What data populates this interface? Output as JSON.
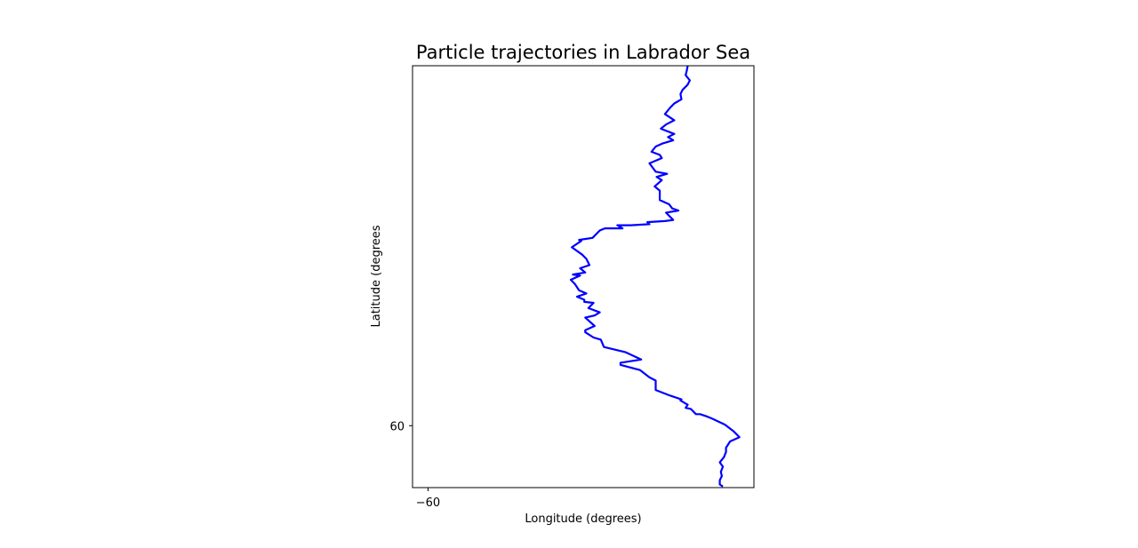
{
  "chart_data": {
    "type": "line",
    "title": "Particle trajectories in Labrador Sea",
    "xlabel": "Longitude (degrees)",
    "ylabel": "Latitude (degrees",
    "xlim": [
      -60.15,
      -56.85
    ],
    "ylim": [
      59.41,
      63.43
    ],
    "xticks": [
      {
        "value": -60,
        "label": "−60"
      }
    ],
    "yticks": [
      {
        "value": 60,
        "label": "60"
      }
    ],
    "grid": false,
    "series": [
      {
        "color": "#0000ff",
        "x": [
          -57.15,
          -57.18,
          -57.18,
          -57.16,
          -57.17,
          -57.15,
          -57.18,
          -57.14,
          -57.12,
          -57.12,
          -57.08,
          -56.99,
          -57.01,
          -57.05,
          -57.13,
          -57.26,
          -57.31,
          -57.37,
          -57.41,
          -57.46,
          -57.51,
          -57.49,
          -57.56,
          -57.55,
          -57.64,
          -57.67,
          -57.8,
          -57.8,
          -57.86,
          -57.95,
          -58.14,
          -58.14,
          -57.94,
          -58.09,
          -58.3,
          -58.33,
          -58.4,
          -58.48,
          -58.48,
          -58.39,
          -58.48,
          -58.39,
          -58.34,
          -58.45,
          -58.4,
          -58.49,
          -58.49,
          -58.56,
          -58.47,
          -58.54,
          -58.58,
          -58.62,
          -58.53,
          -58.6,
          -58.48,
          -58.53,
          -58.44,
          -58.47,
          -58.51,
          -58.61,
          -58.52,
          -58.54,
          -58.41,
          -58.34,
          -58.29,
          -58.12,
          -58.17,
          -58.04,
          -57.86,
          -57.88,
          -57.71,
          -57.63,
          -57.7,
          -57.58,
          -57.64,
          -57.67,
          -57.76,
          -57.76,
          -57.81,
          -57.74,
          -57.79,
          -57.69,
          -57.8,
          -57.86,
          -57.74,
          -57.76,
          -57.84,
          -57.8,
          -57.73,
          -57.63,
          -57.68,
          -57.62,
          -57.75,
          -57.7,
          -57.62,
          -57.71,
          -57.66,
          -57.62,
          -57.55,
          -57.56,
          -57.54,
          -57.49,
          -57.47,
          -57.51,
          -57.5,
          -57.49
        ],
        "y": [
          59.42,
          59.44,
          59.48,
          59.52,
          59.56,
          59.61,
          59.65,
          59.7,
          59.75,
          59.79,
          59.85,
          59.89,
          59.91,
          59.95,
          60.01,
          60.07,
          60.09,
          60.11,
          60.11,
          60.16,
          60.17,
          60.2,
          60.24,
          60.25,
          60.28,
          60.29,
          60.34,
          60.43,
          60.46,
          60.53,
          60.58,
          60.6,
          60.63,
          60.7,
          60.75,
          60.82,
          60.84,
          60.89,
          60.91,
          60.95,
          61.03,
          61.05,
          61.08,
          61.12,
          61.17,
          61.18,
          61.2,
          61.23,
          61.26,
          61.29,
          61.35,
          61.39,
          61.43,
          61.44,
          61.46,
          61.5,
          61.53,
          61.59,
          61.63,
          61.7,
          61.76,
          61.77,
          61.79,
          61.86,
          61.88,
          61.88,
          61.91,
          61.91,
          61.92,
          61.94,
          61.95,
          61.96,
          62.03,
          62.05,
          62.07,
          62.11,
          62.15,
          62.24,
          62.28,
          62.34,
          62.37,
          62.4,
          62.42,
          62.5,
          62.55,
          62.58,
          62.61,
          62.66,
          62.69,
          62.72,
          62.75,
          62.78,
          62.83,
          62.87,
          62.91,
          62.97,
          63.03,
          63.07,
          63.11,
          63.16,
          63.2,
          63.25,
          63.29,
          63.34,
          63.38,
          63.43
        ]
      }
    ]
  }
}
